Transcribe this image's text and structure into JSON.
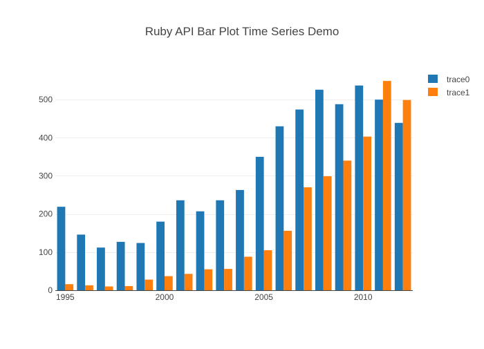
{
  "chart_data": {
    "type": "bar",
    "title": "Ruby API Bar Plot Time Series Demo",
    "x": [
      1995,
      1996,
      1997,
      1998,
      1999,
      2000,
      2001,
      2002,
      2003,
      2004,
      2005,
      2006,
      2007,
      2008,
      2009,
      2010,
      2011,
      2012
    ],
    "x_tick_labels": [
      "1995",
      "2000",
      "2005",
      "2010"
    ],
    "x_tick_values": [
      1995,
      2000,
      2005,
      2010
    ],
    "y_tick_labels": [
      "0",
      "100",
      "200",
      "300",
      "400",
      "500"
    ],
    "y_tick_values": [
      0,
      100,
      200,
      300,
      400,
      500
    ],
    "xlim": [
      1994.5,
      2012.5
    ],
    "ylim": [
      0,
      580
    ],
    "xlabel": "",
    "ylabel": "",
    "grid": "horizontal",
    "legend_position": "top-right",
    "series": [
      {
        "name": "trace0",
        "color": "#1f77b4",
        "values": [
          219,
          146,
          112,
          127,
          124,
          180,
          236,
          207,
          236,
          263,
          350,
          430,
          474,
          526,
          488,
          537,
          500,
          439
        ]
      },
      {
        "name": "trace1",
        "color": "#ff7f0e",
        "values": [
          16,
          13,
          10,
          11,
          28,
          37,
          43,
          55,
          56,
          88,
          105,
          156,
          270,
          299,
          340,
          403,
          549,
          499
        ]
      }
    ]
  }
}
